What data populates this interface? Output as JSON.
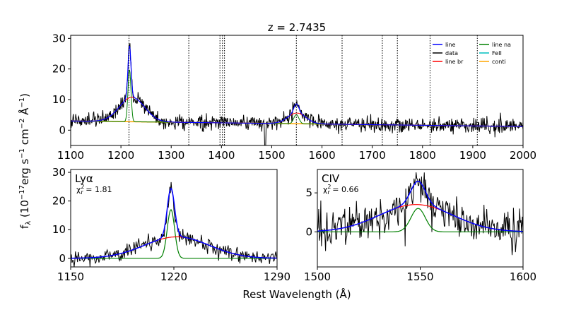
{
  "figure": {
    "ylabel_main": "f",
    "ylabel_sub": "λ",
    "ylabel_units": " (10",
    "ylabel_exp1": "−17",
    "ylabel_mid": "erg s",
    "ylabel_exp2": "−1",
    "ylabel_mid2": " cm",
    "ylabel_exp3": "−2",
    "ylabel_end": " Å",
    "ylabel_exp4": "−1",
    "ylabel_close": ")",
    "xlabel": "Rest Wavelength (Å)"
  },
  "chart_data": [
    {
      "type": "line",
      "title": "z = 2.7435",
      "xlim": [
        1100,
        2000
      ],
      "ylim": [
        -5,
        31
      ],
      "xticks": [
        1100,
        1200,
        1300,
        1400,
        1500,
        1600,
        1700,
        1800,
        1900,
        2000
      ],
      "yticks": [
        0,
        10,
        20,
        30
      ],
      "grid": false,
      "legend_position": "top-right",
      "legend": [
        {
          "label": "line",
          "color": "#0000ff"
        },
        {
          "label": "line na",
          "color": "#008000"
        },
        {
          "label": "data",
          "color": "#000000"
        },
        {
          "label": "FeII",
          "color": "#00bfbf"
        },
        {
          "label": "line br",
          "color": "#ff0000"
        },
        {
          "label": "conti",
          "color": "#ffa500"
        }
      ],
      "vlines": [
        1216,
        1335,
        1397,
        1402,
        1406,
        1549,
        1640,
        1720,
        1750,
        1815,
        1909
      ],
      "continuum": [
        [
          1100,
          3.0
        ],
        [
          2000,
          1.2
        ]
      ],
      "broad_lines": [
        {
          "center": 1222,
          "amp": 8.0,
          "sigma": 25
        },
        {
          "center": 1550,
          "amp": 3.5,
          "sigma": 18
        }
      ],
      "narrow_lines": [
        {
          "center": 1217,
          "amp": 17.0,
          "sigma": 3
        },
        {
          "center": 1549,
          "amp": 3.0,
          "sigma": 5
        }
      ],
      "noise": 1.2
    },
    {
      "type": "line",
      "title": "",
      "annotation": "Lyα",
      "chi2": "= 1.81",
      "xlim": [
        1150,
        1290
      ],
      "ylim": [
        -3,
        31
      ],
      "xticks": [
        1150,
        1220,
        1290
      ],
      "yticks": [
        0,
        10,
        20,
        30
      ],
      "grid": false,
      "continuum": [
        [
          1150,
          0.0
        ],
        [
          1290,
          0.0
        ]
      ],
      "broad_lines": [
        {
          "center": 1222,
          "amp": 7.5,
          "sigma": 22
        }
      ],
      "narrow_lines": [
        {
          "center": 1218,
          "amp": 17.0,
          "sigma": 2.5
        }
      ],
      "noise": 1.3
    },
    {
      "type": "line",
      "title": "",
      "annotation": "CIV",
      "chi2": "= 0.66",
      "xlim": [
        1500,
        1600
      ],
      "ylim": [
        -4.5,
        8
      ],
      "xticks": [
        1500,
        1550,
        1600
      ],
      "yticks": [
        0,
        5
      ],
      "grid": false,
      "continuum": [
        [
          1500,
          0.0
        ],
        [
          1600,
          0.0
        ]
      ],
      "broad_lines": [
        {
          "center": 1548,
          "amp": 3.5,
          "sigma": 18
        }
      ],
      "narrow_lines": [
        {
          "center": 1549,
          "amp": 3.0,
          "sigma": 3.5
        }
      ],
      "noise": 1.3
    }
  ]
}
